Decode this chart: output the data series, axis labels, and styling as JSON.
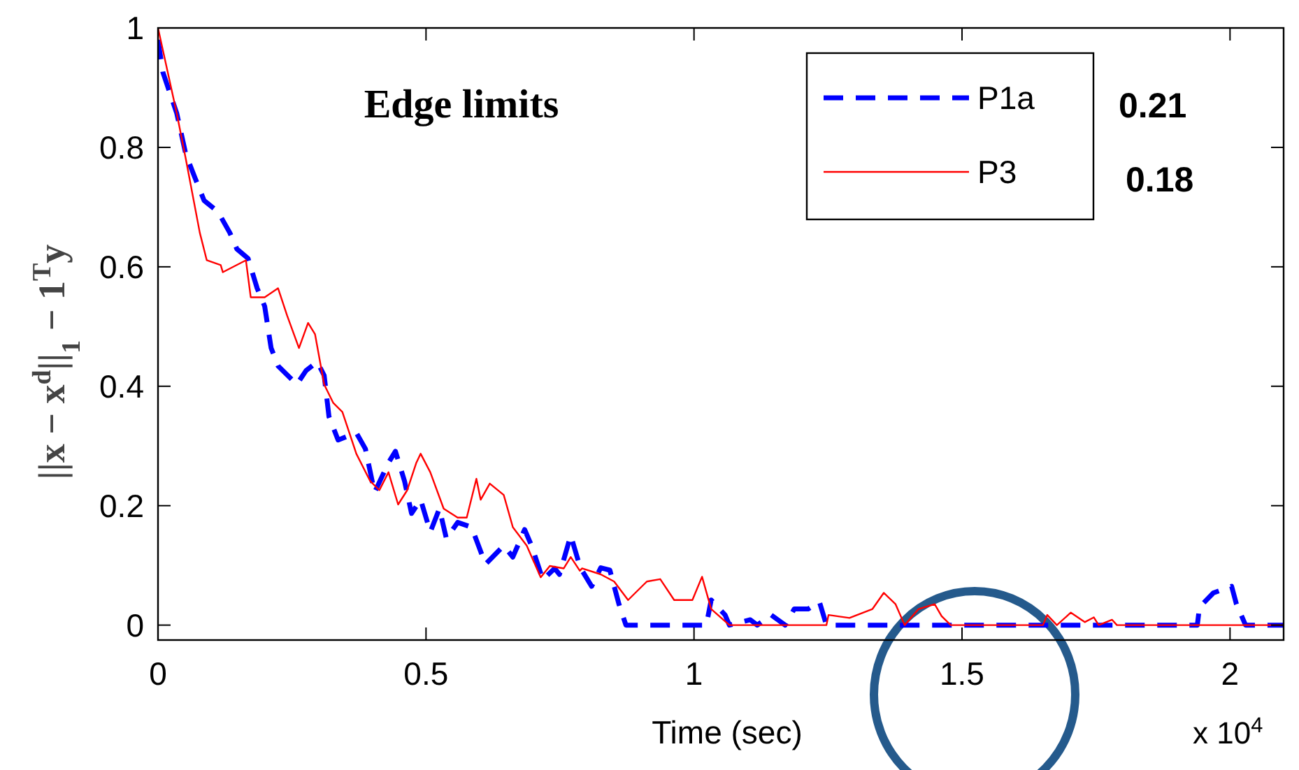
{
  "chart_data": {
    "type": "line",
    "title": "Edge limits",
    "xlabel": "Time (sec)",
    "ylabel": "||x − x$^{d}$||$_{1}$ − 1$^{T}$y",
    "xlim": [
      0,
      2.1
    ],
    "ylim": [
      -0.025,
      1
    ],
    "xticks": [
      0,
      0.5,
      1,
      1.5,
      2
    ],
    "yticks": [
      0,
      0.2,
      0.4,
      0.6,
      0.8,
      1
    ],
    "legend": "top right",
    "grid": false,
    "annotations": [
      "0.21",
      "0.18",
      "x 10$^{4}$"
    ],
    "series": [
      {
        "name": "P1a",
        "color": "#0000ff",
        "line_style": "dashed",
        "x": [
          0,
          0.009,
          0.035,
          0.052,
          0.069,
          0.086,
          0.112,
          0.134,
          0.147,
          0.168,
          0.185,
          0.199,
          0.211,
          0.224,
          0.259,
          0.276,
          0.297,
          0.31,
          0.319,
          0.336,
          0.37,
          0.387,
          0.404,
          0.43,
          0.443,
          0.46,
          0.473,
          0.49,
          0.508,
          0.525,
          0.538,
          0.559,
          0.585,
          0.611,
          0.645,
          0.662,
          0.684,
          0.697,
          0.718,
          0.74,
          0.749,
          0.77,
          0.788,
          0.809,
          0.826,
          0.843,
          0.86,
          0.873,
          1.023,
          1.032,
          1.058,
          1.066,
          1.105,
          1.118,
          1.144,
          1.17,
          1.187,
          1.213,
          1.234,
          1.247,
          1.939,
          1.943,
          1.969,
          2.003,
          2.012,
          2.029,
          2.1
        ],
        "values": [
          0.98,
          0.926,
          0.857,
          0.788,
          0.749,
          0.711,
          0.692,
          0.657,
          0.63,
          0.614,
          0.564,
          0.534,
          0.464,
          0.434,
          0.403,
          0.426,
          0.441,
          0.418,
          0.349,
          0.31,
          0.322,
          0.295,
          0.222,
          0.272,
          0.291,
          0.241,
          0.187,
          0.21,
          0.156,
          0.195,
          0.145,
          0.172,
          0.164,
          0.102,
          0.133,
          0.114,
          0.16,
          0.133,
          0.076,
          0.095,
          0.085,
          0.15,
          0.096,
          0.065,
          0.096,
          0.092,
          0.035,
          0,
          0,
          0.042,
          0.017,
          0,
          0.009,
          0,
          0.017,
          0,
          0.027,
          0.027,
          0.039,
          0,
          0,
          0.03,
          0.054,
          0.065,
          0.035,
          0,
          0
        ]
      },
      {
        "name": "P3",
        "color": "#ff0000",
        "line_style": "solid",
        "x": [
          0,
          0.035,
          0.052,
          0.078,
          0.091,
          0.117,
          0.121,
          0.164,
          0.173,
          0.199,
          0.224,
          0.241,
          0.263,
          0.28,
          0.293,
          0.31,
          0.327,
          0.344,
          0.37,
          0.396,
          0.413,
          0.43,
          0.448,
          0.465,
          0.482,
          0.49,
          0.508,
          0.533,
          0.559,
          0.576,
          0.594,
          0.602,
          0.619,
          0.645,
          0.662,
          0.688,
          0.714,
          0.731,
          0.757,
          0.77,
          0.787,
          0.791,
          0.826,
          0.851,
          0.877,
          0.912,
          0.937,
          0.963,
          0.997,
          1.015,
          1.032,
          1.066,
          1.247,
          1.251,
          1.29,
          1.333,
          1.354,
          1.376,
          1.393,
          1.419,
          1.449,
          1.462,
          1.479,
          1.651,
          1.659,
          1.677,
          1.703,
          1.729,
          1.746,
          1.755,
          1.78,
          1.789,
          2.1
        ],
        "values": [
          1,
          0.857,
          0.78,
          0.657,
          0.611,
          0.603,
          0.591,
          0.611,
          0.549,
          0.549,
          0.564,
          0.518,
          0.464,
          0.506,
          0.487,
          0.403,
          0.372,
          0.357,
          0.287,
          0.241,
          0.226,
          0.256,
          0.202,
          0.226,
          0.272,
          0.287,
          0.256,
          0.195,
          0.18,
          0.18,
          0.245,
          0.21,
          0.237,
          0.218,
          0.164,
          0.133,
          0.08,
          0.099,
          0.095,
          0.114,
          0.091,
          0.095,
          0.085,
          0.073,
          0.042,
          0.073,
          0.077,
          0.042,
          0.042,
          0.081,
          0.027,
          0,
          0,
          0.017,
          0.012,
          0.027,
          0.054,
          0.035,
          0,
          0.027,
          0.035,
          0.015,
          0,
          0,
          0.017,
          0,
          0.021,
          0.005,
          0.013,
          0,
          0.009,
          0,
          0
        ]
      }
    ]
  }
}
